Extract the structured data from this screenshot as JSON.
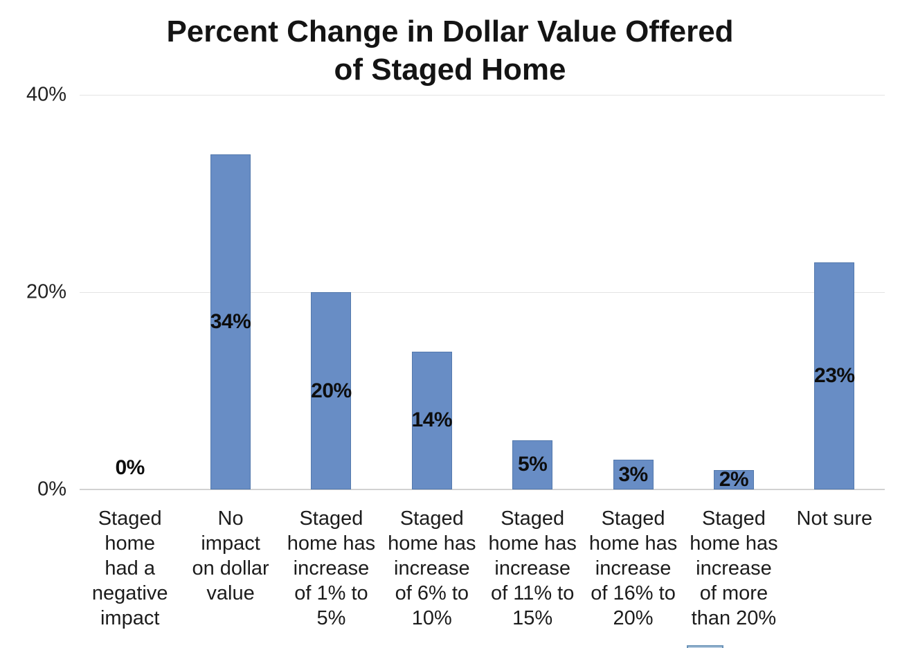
{
  "title": {
    "line1": "Percent Change in Dollar Value Offered",
    "line2": "of Staged Home"
  },
  "chart_data": {
    "type": "bar",
    "title": "Percent Change in Dollar Value Offered of Staged Home",
    "categories": [
      "Staged home had a negative impact",
      "No impact on dollar value",
      "Staged home has increase of 1% to 5%",
      "Staged home has increase of 6% to 10%",
      "Staged home has increase of 11% to 15%",
      "Staged home has increase of 16% to 20%",
      "Staged home has increase of more than 20%",
      "Not sure"
    ],
    "category_lines": [
      [
        "Staged",
        "home",
        "had a",
        "negative",
        "impact"
      ],
      [
        "No",
        "impact",
        "on dollar",
        "value"
      ],
      [
        "Staged",
        "home has",
        "increase",
        "of 1% to",
        "5%"
      ],
      [
        "Staged",
        "home has",
        "increase",
        "of 6% to",
        "10%"
      ],
      [
        "Staged",
        "home has",
        "increase",
        "of 11% to",
        "15%"
      ],
      [
        "Staged",
        "home has",
        "increase",
        "of 16% to",
        "20%"
      ],
      [
        "Staged",
        "home has",
        "increase",
        "of more",
        "than 20%"
      ],
      [
        "Not sure"
      ]
    ],
    "values": [
      0,
      34,
      20,
      14,
      5,
      3,
      2,
      23
    ],
    "data_labels": [
      "0%",
      "34%",
      "20%",
      "14%",
      "5%",
      "3%",
      "2%",
      "23%"
    ],
    "xlabel": "",
    "ylabel": "",
    "ylim": [
      0,
      40
    ],
    "grid": true,
    "legend_position": "bottom (cut off at image edge)",
    "y_ticks": [
      {
        "label": "0%",
        "value": 0
      },
      {
        "label": "20%",
        "value": 20
      },
      {
        "label": "40%",
        "value": 40
      }
    ]
  },
  "colors": {
    "bar_fill": "#688dc5",
    "bar_border": "#5379ac",
    "gridline": "#e4e4e4",
    "axisline": "#d2d2d2",
    "title_text": "#141414",
    "label_text": "#1c1c1c",
    "data_label_text": "#0d0d0d",
    "legend_border": "#6a93b8",
    "legend_fill": "#b7cce0"
  }
}
